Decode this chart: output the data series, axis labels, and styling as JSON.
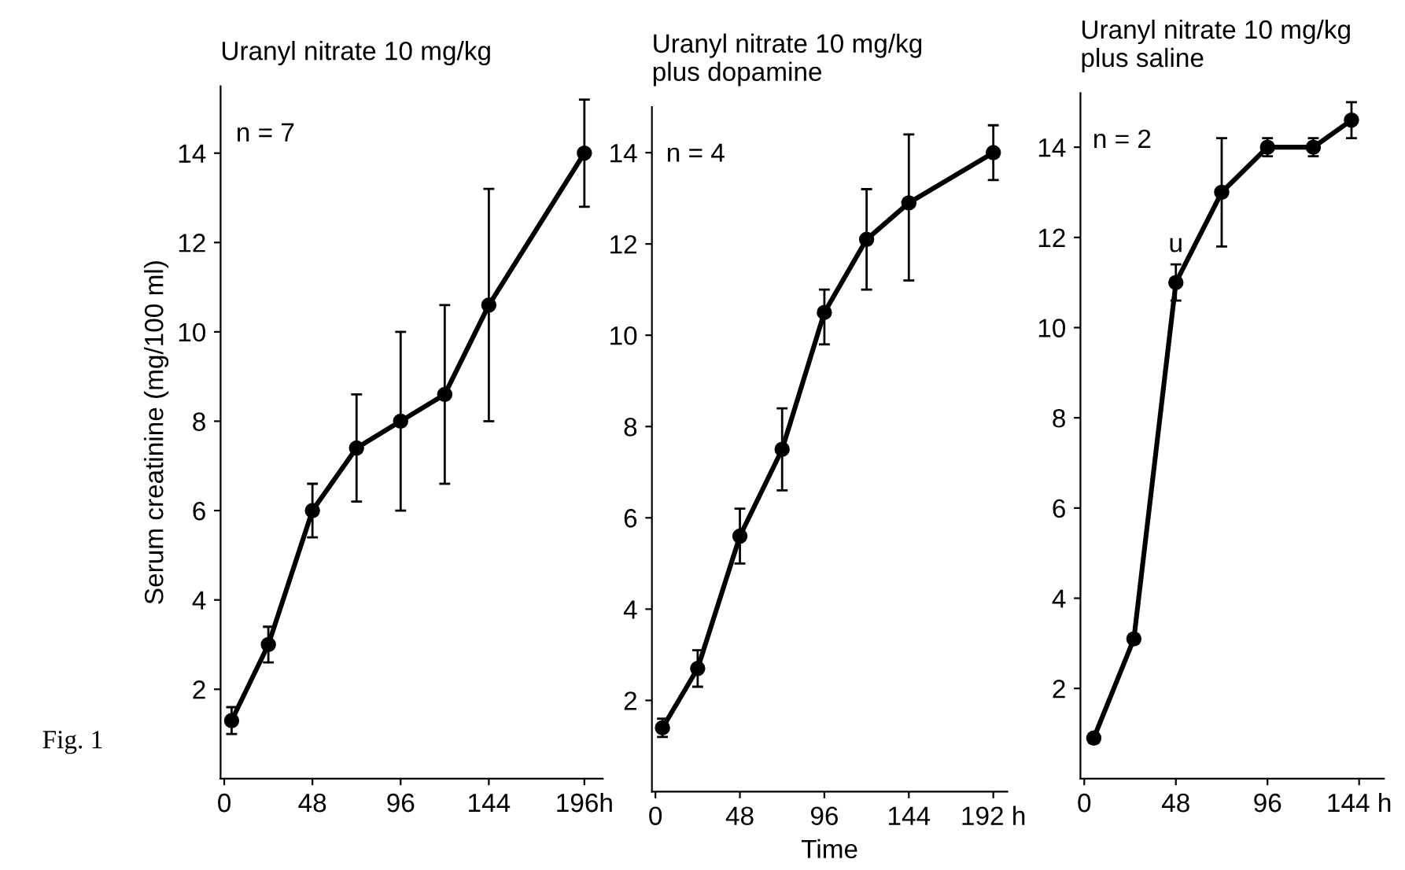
{
  "chart_data": [
    {
      "type": "line",
      "title": "Uranyl nitrate 10 mg/kg",
      "ylabel": "Serum creatinine (mg/100 ml)",
      "annotations": [
        "n = 7",
        "Fig. 1"
      ],
      "x": [
        4,
        24,
        48,
        72,
        96,
        120,
        144,
        196
      ],
      "series": [
        {
          "color": "#000000",
          "values": [
            1.3,
            3.0,
            6.0,
            7.4,
            8.0,
            8.6,
            10.6,
            14.0
          ],
          "errors": [
            [
              1.0,
              1.6
            ],
            [
              2.6,
              3.4
            ],
            [
              5.4,
              6.6
            ],
            [
              6.2,
              8.6
            ],
            [
              6.0,
              10.0
            ],
            [
              6.6,
              10.6
            ],
            [
              8.0,
              13.2
            ],
            [
              12.8,
              15.2
            ]
          ]
        }
      ],
      "xlim": [
        -2,
        206
      ],
      "xticks": [
        0,
        48,
        96,
        144,
        {
          "value": 196,
          "label": "196h"
        }
      ],
      "ylim": [
        0,
        15.5
      ],
      "yticks": [
        2,
        4,
        6,
        8,
        10,
        12,
        14
      ],
      "grid": false,
      "legend": false,
      "marker": "circle",
      "line_style": "solid"
    },
    {
      "type": "line",
      "title": "Uranyl nitrate 10 mg/kg\nplus dopamine",
      "xlabel": "Time",
      "annotations": [
        "n = 4"
      ],
      "x": [
        4,
        24,
        48,
        72,
        96,
        120,
        144,
        192
      ],
      "series": [
        {
          "color": "#000000",
          "values": [
            1.4,
            2.7,
            5.6,
            7.5,
            10.5,
            12.1,
            12.9,
            14.0
          ],
          "errors": [
            [
              1.2,
              1.6
            ],
            [
              2.3,
              3.1
            ],
            [
              5.0,
              6.2
            ],
            [
              6.6,
              8.4
            ],
            [
              9.8,
              11.0
            ],
            [
              11.0,
              13.2
            ],
            [
              11.2,
              14.4
            ],
            [
              13.4,
              14.6
            ]
          ]
        }
      ],
      "xlim": [
        -2,
        200
      ],
      "xticks": [
        0,
        48,
        96,
        144,
        {
          "value": 192,
          "label": "192 h"
        }
      ],
      "ylim": [
        0,
        15
      ],
      "yticks": [
        2,
        4,
        6,
        8,
        10,
        12,
        14
      ],
      "grid": false,
      "legend": false,
      "marker": "circle",
      "line_style": "solid"
    },
    {
      "type": "line",
      "title": "Uranyl nitrate 10 mg/kg\nplus saline",
      "annotations": [
        "n = 2",
        {
          "text": "u",
          "x": 48,
          "y": 11.0
        }
      ],
      "x": [
        5,
        26,
        48,
        72,
        96,
        120,
        140
      ],
      "series": [
        {
          "color": "#000000",
          "values": [
            0.9,
            3.1,
            11.0,
            13.0,
            14.0,
            14.0,
            14.6
          ],
          "errors": [
            [
              0.8,
              1.0
            ],
            [
              3.0,
              3.2
            ],
            [
              10.6,
              11.4
            ],
            [
              11.8,
              14.2
            ],
            [
              13.8,
              14.2
            ],
            [
              13.8,
              14.2
            ],
            [
              14.2,
              15.0
            ]
          ]
        }
      ],
      "xlim": [
        -2,
        157
      ],
      "xticks": [
        0,
        48,
        96,
        {
          "value": 144,
          "label": "144 h"
        }
      ],
      "ylim": [
        0,
        15.2
      ],
      "yticks": [
        2,
        4,
        6,
        8,
        10,
        12,
        14
      ],
      "grid": false,
      "legend": false,
      "marker": "circle",
      "line_style": "solid"
    }
  ]
}
